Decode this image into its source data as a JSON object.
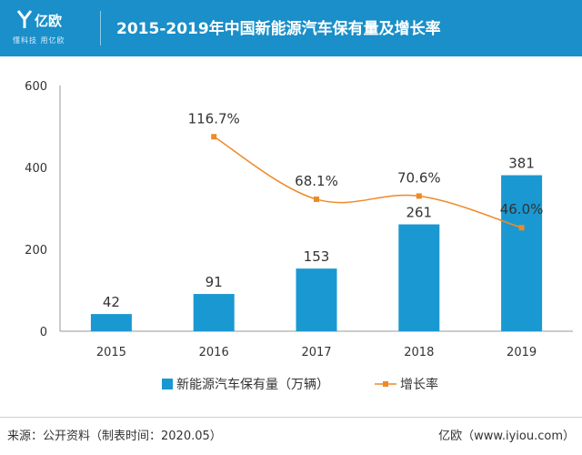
{
  "brand": {
    "name": "亿欧",
    "slogan": "懂科技 用亿欧"
  },
  "header": {
    "title": "2015-2019年中国新能源汽车保有量及增长率"
  },
  "colors": {
    "header_bg": "#1a8fc9",
    "bar": "#1a98d1",
    "line": "#ee8a26",
    "axis": "#999999"
  },
  "chart_data": {
    "type": "bar+line",
    "title": "2015-2019年中国新能源汽车保有量及增长率",
    "categories": [
      "2015",
      "2016",
      "2017",
      "2018",
      "2019"
    ],
    "series": [
      {
        "name": "新能源汽车保有量（万辆）",
        "type": "bar",
        "axis": "left",
        "values": [
          42,
          91,
          153,
          261,
          381
        ],
        "labels": [
          "42",
          "91",
          "153",
          "261",
          "381"
        ]
      },
      {
        "name": "增长率",
        "type": "line",
        "axis": "right",
        "values": [
          null,
          116.7,
          68.1,
          70.6,
          46.0
        ],
        "labels": [
          "",
          "116.7%",
          "68.1%",
          "70.6%",
          "46.0%"
        ]
      }
    ],
    "ylim": [
      0,
      600
    ],
    "yticks": [
      "0",
      "200",
      "400",
      "600"
    ],
    "xlabel": "",
    "ylabel": "",
    "legend_position": "bottom-center"
  },
  "footer": {
    "source": "来源：公开资料（制表时间：2020.05）",
    "site": "亿欧（www.iyiou.com）"
  }
}
